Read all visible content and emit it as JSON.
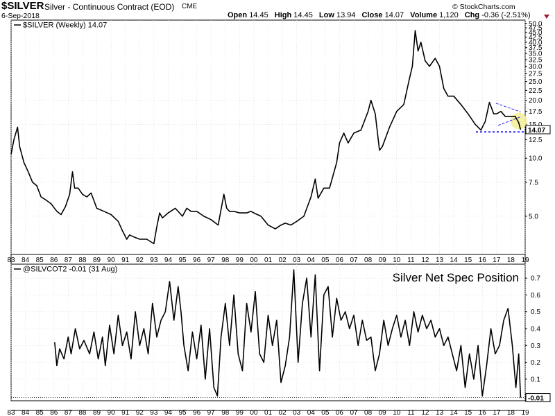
{
  "header": {
    "symbol": "$SILVER",
    "description": "Silver - Continuous Contract (EOD)",
    "exchange": "CME",
    "date": "6-Sep-2018",
    "open_label": "Open",
    "open": "14.45",
    "high_label": "High",
    "high": "14.45",
    "low_label": "Low",
    "low": "13.94",
    "close_label": "Close",
    "close": "14.07",
    "volume_label": "Volume",
    "volume": "1,120",
    "chg_label": "Chg",
    "chg": "-0.36 (-2.51%)",
    "watermark": "© StockCharts.com"
  },
  "colors": {
    "line": "#000000",
    "grid": "#d9d9d9",
    "trend": "#2a2af0",
    "highlight": "#f4f09a",
    "down": "#9e1b32"
  },
  "chart_data": [
    {
      "type": "line",
      "legend": "$SILVER (Weekly) 14.07",
      "scale": "log",
      "ylim": [
        3.3,
        50
      ],
      "y_ticks": [
        "50.0",
        "47.5",
        "45.0",
        "42.5",
        "40.0",
        "37.5",
        "35.0",
        "32.5",
        "30.0",
        "27.5",
        "25.0",
        "22.5",
        "20.0",
        "17.5",
        "15.0",
        "12.5",
        "10.0",
        "7.5",
        "5.0"
      ],
      "last_value_label": "14.07",
      "x_range": [
        1983,
        2019
      ],
      "x_tick_labels": [
        "83",
        "84",
        "85",
        "86",
        "87",
        "88",
        "89",
        "90",
        "91",
        "92",
        "93",
        "94",
        "95",
        "96",
        "97",
        "98",
        "99",
        "00",
        "01",
        "02",
        "03",
        "04",
        "05",
        "06",
        "07",
        "08",
        "09",
        "10",
        "11",
        "12",
        "13",
        "14",
        "15",
        "16",
        "17",
        "18",
        "19"
      ],
      "x": [
        1983.0,
        1983.2,
        1983.45,
        1983.6,
        1983.9,
        1984.2,
        1984.5,
        1984.8,
        1985.1,
        1985.4,
        1985.8,
        1986.2,
        1986.5,
        1986.8,
        1987.1,
        1987.3,
        1987.45,
        1987.7,
        1988.0,
        1988.3,
        1988.6,
        1989.0,
        1989.5,
        1990.0,
        1990.5,
        1990.8,
        1991.1,
        1991.3,
        1991.6,
        1992.0,
        1992.5,
        1993.0,
        1993.2,
        1993.4,
        1993.6,
        1994.0,
        1994.5,
        1995.0,
        1995.3,
        1995.6,
        1996.0,
        1996.5,
        1997.0,
        1997.5,
        1997.9,
        1998.1,
        1998.3,
        1998.6,
        1999.0,
        1999.5,
        1999.8,
        2000.0,
        2000.5,
        2001.0,
        2001.5,
        2001.9,
        2002.2,
        2002.6,
        2003.0,
        2003.5,
        2004.0,
        2004.3,
        2004.5,
        2004.9,
        2005.3,
        2005.8,
        2006.0,
        2006.3,
        2006.6,
        2007.0,
        2007.5,
        2008.0,
        2008.2,
        2008.5,
        2008.8,
        2009.0,
        2009.5,
        2010.0,
        2010.5,
        2010.9,
        2011.1,
        2011.3,
        2011.5,
        2011.7,
        2012.0,
        2012.3,
        2012.7,
        2013.0,
        2013.3,
        2013.6,
        2014.0,
        2014.5,
        2015.0,
        2015.5,
        2015.9,
        2016.2,
        2016.5,
        2016.8,
        2017.0,
        2017.3,
        2017.6,
        2018.0,
        2018.3,
        2018.55,
        2018.68
      ],
      "y": [
        10.5,
        12.5,
        14.5,
        11.5,
        9.5,
        8.5,
        7.5,
        7.2,
        6.3,
        6.1,
        5.8,
        5.3,
        5.1,
        5.6,
        6.5,
        8.5,
        7.0,
        7.0,
        6.5,
        6.3,
        6.6,
        5.5,
        5.3,
        5.1,
        4.7,
        4.2,
        3.8,
        4.0,
        3.9,
        3.8,
        3.8,
        3.6,
        4.4,
        5.2,
        4.9,
        5.2,
        5.5,
        5.0,
        5.5,
        5.3,
        5.3,
        5.0,
        4.8,
        4.5,
        6.5,
        5.5,
        5.3,
        5.3,
        5.2,
        5.2,
        5.3,
        5.2,
        5.0,
        4.5,
        4.3,
        4.5,
        4.6,
        4.5,
        4.7,
        5.0,
        6.3,
        7.8,
        6.2,
        7.0,
        7.0,
        9.5,
        12.0,
        13.5,
        12.0,
        13.5,
        14.0,
        17.5,
        20.0,
        17.0,
        11.0,
        11.5,
        14.5,
        17.5,
        19.0,
        26.0,
        30.0,
        46.0,
        36.0,
        40.0,
        32.0,
        30.0,
        33.0,
        30.0,
        23.0,
        21.0,
        21.0,
        19.0,
        17.0,
        15.0,
        14.0,
        15.5,
        19.5,
        17.0,
        17.0,
        17.5,
        16.5,
        16.5,
        16.5,
        15.3,
        14.07
      ]
    },
    {
      "type": "line",
      "legend": "@SILVCOT2 -0.01 (31 Aug)",
      "annotation": "Silver Net Spec Position",
      "ylim": [
        -0.02,
        0.75
      ],
      "y_ticks": [
        "0.7",
        "0.6",
        "0.5",
        "0.4",
        "0.3",
        "0.2",
        "0.1"
      ],
      "last_value_label": "-0.01",
      "x_range": [
        1983,
        2019
      ],
      "x_tick_labels": [
        "83",
        "84",
        "85",
        "86",
        "87",
        "88",
        "89",
        "90",
        "91",
        "92",
        "93",
        "94",
        "95",
        "96",
        "97",
        "98",
        "99",
        "00",
        "01",
        "02",
        "03",
        "04",
        "05",
        "06",
        "07",
        "08",
        "09",
        "10",
        "11",
        "12",
        "13",
        "14",
        "15",
        "16",
        "17",
        "18",
        "19"
      ],
      "x": [
        1986.05,
        1986.2,
        1986.4,
        1986.7,
        1987.0,
        1987.2,
        1987.5,
        1987.8,
        1988.1,
        1988.5,
        1988.8,
        1989.1,
        1989.4,
        1989.6,
        1989.9,
        1990.2,
        1990.5,
        1990.8,
        1991.1,
        1991.4,
        1991.7,
        1992.0,
        1992.3,
        1992.6,
        1992.9,
        1993.2,
        1993.5,
        1993.8,
        1994.1,
        1994.4,
        1994.7,
        1994.9,
        1995.1,
        1995.4,
        1995.7,
        1996.0,
        1996.3,
        1996.6,
        1996.9,
        1997.2,
        1997.45,
        1997.7,
        1998.0,
        1998.3,
        1998.6,
        1998.9,
        1999.2,
        1999.5,
        1999.8,
        2000.1,
        2000.4,
        2000.7,
        2001.0,
        2001.3,
        2001.6,
        2001.9,
        2002.2,
        2002.5,
        2002.8,
        2003.1,
        2003.4,
        2003.7,
        2004.0,
        2004.3,
        2004.6,
        2004.9,
        2005.2,
        2005.5,
        2005.8,
        2006.1,
        2006.4,
        2006.7,
        2007.0,
        2007.3,
        2007.6,
        2007.9,
        2008.2,
        2008.5,
        2008.8,
        2009.1,
        2009.4,
        2009.7,
        2010.0,
        2010.3,
        2010.6,
        2010.9,
        2011.2,
        2011.5,
        2011.8,
        2012.1,
        2012.4,
        2012.7,
        2013.0,
        2013.3,
        2013.6,
        2013.9,
        2014.2,
        2014.5,
        2014.8,
        2015.1,
        2015.4,
        2015.7,
        2016.0,
        2016.3,
        2016.6,
        2016.9,
        2017.2,
        2017.5,
        2017.8,
        2018.1,
        2018.35,
        2018.55,
        2018.68
      ],
      "y": [
        0.32,
        0.18,
        0.28,
        0.22,
        0.35,
        0.25,
        0.4,
        0.28,
        0.33,
        0.25,
        0.38,
        0.22,
        0.35,
        0.18,
        0.42,
        0.25,
        0.48,
        0.3,
        0.38,
        0.22,
        0.5,
        0.3,
        0.4,
        0.25,
        0.55,
        0.35,
        0.45,
        0.5,
        0.68,
        0.45,
        0.65,
        0.5,
        0.3,
        0.15,
        0.38,
        0.22,
        0.42,
        0.1,
        0.4,
        0.05,
        0.0,
        0.35,
        0.55,
        0.3,
        0.6,
        0.25,
        0.15,
        0.55,
        0.38,
        0.62,
        0.25,
        0.2,
        0.48,
        0.3,
        0.45,
        0.08,
        0.18,
        0.35,
        0.75,
        0.2,
        0.55,
        0.7,
        0.35,
        0.72,
        0.15,
        0.6,
        0.65,
        0.35,
        0.58,
        0.45,
        0.5,
        0.4,
        0.48,
        0.3,
        0.45,
        0.33,
        0.35,
        0.15,
        0.25,
        0.45,
        0.3,
        0.4,
        0.48,
        0.35,
        0.45,
        0.3,
        0.5,
        0.38,
        0.48,
        0.4,
        0.45,
        0.35,
        0.4,
        0.3,
        0.35,
        0.25,
        0.15,
        0.3,
        0.05,
        0.25,
        0.1,
        0.3,
        0.0,
        0.18,
        0.4,
        0.25,
        0.3,
        0.45,
        0.52,
        0.3,
        0.05,
        0.25,
        -0.01
      ]
    }
  ]
}
